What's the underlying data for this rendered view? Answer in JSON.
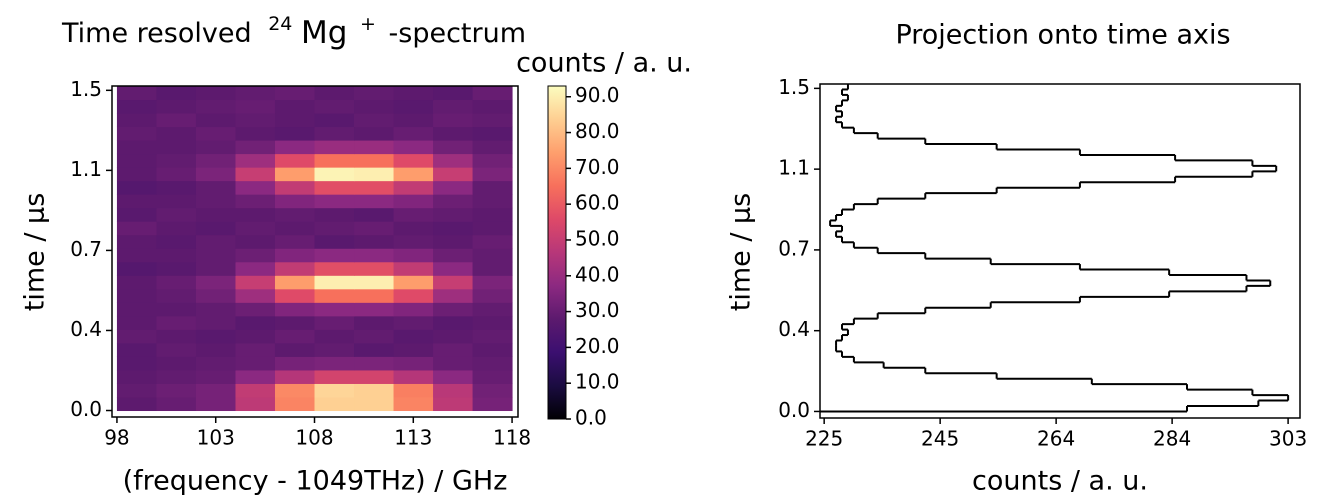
{
  "chart_data": [
    {
      "type": "heatmap",
      "title": {
        "pre": "Time resolved",
        "sup1": "24",
        "element": "Mg",
        "sup2": "+",
        "post": "-spectrum"
      },
      "xlabel": "(frequency - 1049THz) / GHz",
      "ylabel": "time / µs",
      "colorbar_label": "counts / a. u.",
      "xlim": [
        97.75,
        118.3
      ],
      "ylim": [
        -0.03,
        1.5
      ],
      "xticks": [
        98,
        103,
        108,
        113,
        118
      ],
      "yticks": [
        {
          "value": 0,
          "label": "0.0"
        },
        {
          "value": 0.37,
          "label": "0.4"
        },
        {
          "value": 0.74,
          "label": "0.7"
        },
        {
          "value": 1.11,
          "label": "1.1"
        },
        {
          "value": 1.48,
          "label": "1.5"
        }
      ],
      "x_edges": [
        98,
        100,
        102,
        104,
        106,
        108,
        110,
        112,
        114,
        116,
        118
      ],
      "y_edges": [
        0,
        0.0625,
        0.125,
        0.1875,
        0.25,
        0.3125,
        0.375,
        0.4375,
        0.5,
        0.5625,
        0.625,
        0.6875,
        0.75,
        0.8125,
        0.875,
        0.9375,
        1,
        1.0625,
        1.125,
        1.1875,
        1.25,
        1.3125,
        1.375,
        1.4375,
        1.5
      ],
      "z": [
        [
          28,
          30,
          33,
          48,
          69,
          84,
          84,
          69,
          48,
          33
        ],
        [
          29,
          31,
          33,
          49,
          70,
          85,
          84,
          68,
          47,
          32
        ],
        [
          28,
          29,
          30,
          37,
          46,
          53,
          53,
          46,
          37,
          30
        ],
        [
          27,
          28,
          29,
          30,
          33,
          34,
          34,
          33,
          30,
          29
        ],
        [
          27,
          29,
          28,
          30,
          28,
          29,
          27,
          28,
          30,
          28
        ],
        [
          29,
          28,
          27,
          28,
          30,
          28,
          29,
          27,
          28,
          29
        ],
        [
          28,
          30,
          29,
          27,
          28,
          30,
          28,
          29,
          27,
          28
        ],
        [
          28,
          28,
          29,
          31,
          35,
          37,
          37,
          35,
          31,
          29
        ],
        [
          28,
          29,
          32,
          41,
          56,
          65,
          65,
          56,
          41,
          32
        ],
        [
          28,
          30,
          34,
          50,
          74,
          90,
          90,
          74,
          50,
          34
        ],
        [
          26,
          27,
          29,
          37,
          49,
          57,
          57,
          49,
          37,
          29
        ],
        [
          28,
          28,
          29,
          31,
          35,
          37,
          37,
          35,
          31,
          29
        ],
        [
          28,
          27,
          29,
          28,
          30,
          27,
          28,
          29,
          28,
          30
        ],
        [
          30,
          28,
          27,
          29,
          28,
          29,
          30,
          28,
          27,
          28
        ],
        [
          27,
          29,
          28,
          28,
          29,
          28,
          27,
          30,
          29,
          28
        ],
        [
          28,
          28,
          29,
          31,
          35,
          37,
          37,
          35,
          31,
          29
        ],
        [
          26,
          27,
          29,
          37,
          49,
          57,
          57,
          49,
          37,
          29
        ],
        [
          28,
          30,
          34,
          50,
          74,
          91,
          90,
          74,
          50,
          34
        ],
        [
          28,
          29,
          32,
          41,
          56,
          65,
          65,
          56,
          41,
          32
        ],
        [
          28,
          28,
          29,
          32,
          37,
          40,
          40,
          37,
          32,
          29
        ],
        [
          29,
          28,
          30,
          28,
          27,
          29,
          28,
          30,
          28,
          27
        ],
        [
          28,
          30,
          28,
          29,
          28,
          27,
          29,
          28,
          30,
          29
        ],
        [
          27,
          28,
          29,
          30,
          28,
          29,
          28,
          27,
          29,
          28
        ],
        [
          29,
          27,
          28,
          29,
          30,
          28,
          29,
          28,
          27,
          30
        ]
      ],
      "zlim": [
        0,
        93
      ],
      "zticks": [
        {
          "value": 0,
          "label": "0.0"
        },
        {
          "value": 10,
          "label": "10.0"
        },
        {
          "value": 20,
          "label": "20.0"
        },
        {
          "value": 30,
          "label": "30.0"
        },
        {
          "value": 40,
          "label": "40.0"
        },
        {
          "value": 50,
          "label": "50.0"
        },
        {
          "value": 60,
          "label": "60.0"
        },
        {
          "value": 70,
          "label": "70.0"
        },
        {
          "value": 80,
          "label": "80.0"
        },
        {
          "value": 90,
          "label": "90.0"
        }
      ],
      "colormap": [
        "#000004",
        "#1b0c41",
        "#3b0f70",
        "#5c1a6e",
        "#8c2981",
        "#b73779",
        "#de4968",
        "#f7705c",
        "#fe9f6d",
        "#fecf92",
        "#fcfdbf"
      ]
    },
    {
      "type": "step",
      "orientation": "horizontal",
      "title": "Projection onto time axis",
      "xlabel": "counts / a. u.",
      "ylabel": "time / µs",
      "xlim": [
        224.3,
        305
      ],
      "ylim": [
        -0.03,
        1.5
      ],
      "xticks": [
        225,
        {
          "value": 244.5,
          "label": "245"
        },
        264,
        {
          "value": 283.5,
          "label": "284"
        },
        303
      ],
      "yticks": [
        {
          "value": 0,
          "label": "0.0"
        },
        {
          "value": 0.37,
          "label": "0.4"
        },
        {
          "value": 0.74,
          "label": "0.7"
        },
        {
          "value": 1.11,
          "label": "1.1"
        },
        {
          "value": 1.48,
          "label": "1.5"
        }
      ],
      "color": "#000000",
      "y": [
        0.0125,
        0.0375,
        0.0625,
        0.0875,
        0.1125,
        0.1375,
        0.1625,
        0.1875,
        0.2125,
        0.2375,
        0.2625,
        0.2875,
        0.3125,
        0.3375,
        0.3625,
        0.3875,
        0.4125,
        0.4375,
        0.4625,
        0.4875,
        0.5125,
        0.5375,
        0.5625,
        0.5875,
        0.6125,
        0.6375,
        0.6625,
        0.6875,
        0.7125,
        0.7375,
        0.7625,
        0.7875,
        0.8125,
        0.8375,
        0.8625,
        0.8875,
        0.9125,
        0.9375,
        0.9625,
        0.9875,
        1.0125,
        1.0375,
        1.0625,
        1.0875,
        1.1125,
        1.1375,
        1.1625,
        1.1875,
        1.2125,
        1.2375,
        1.2625,
        1.2875,
        1.3125,
        1.3375,
        1.3625,
        1.3875,
        1.4125,
        1.4375,
        1.4625,
        1.4875
      ],
      "values": [
        286,
        298,
        303,
        297,
        286,
        270,
        254,
        242,
        235,
        230,
        228,
        227,
        227,
        228,
        229,
        228,
        230,
        234,
        242,
        253,
        268,
        283,
        296,
        300,
        296,
        283,
        268,
        253,
        242,
        234,
        230,
        228,
        227,
        228,
        226,
        227,
        228,
        230,
        234,
        242,
        254,
        268,
        284,
        297,
        301,
        297,
        284,
        268,
        254,
        242,
        234,
        230,
        228,
        227,
        228,
        227,
        228,
        229,
        228,
        229
      ]
    }
  ]
}
